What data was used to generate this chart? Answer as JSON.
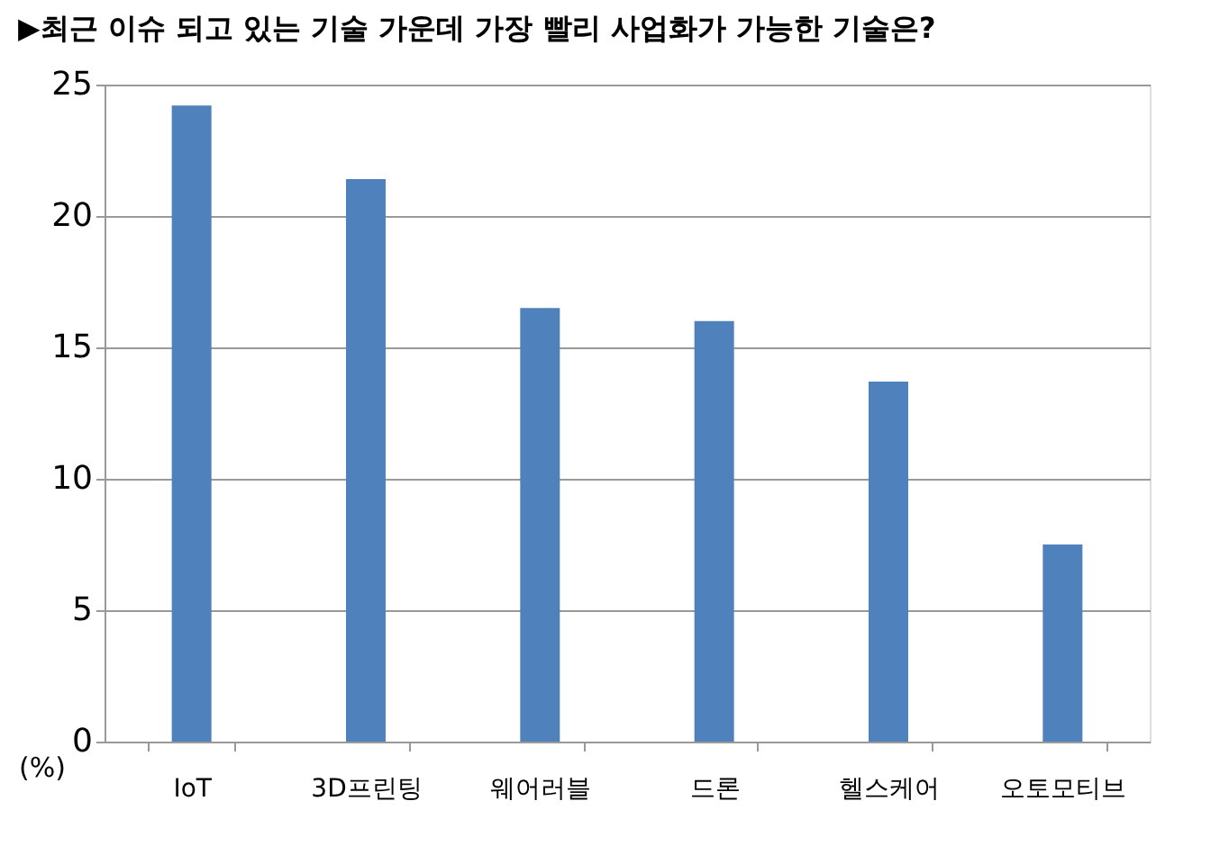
{
  "chart_data": {
    "type": "bar",
    "title": "▶최근 이슈 되고 있는 기술 가운데 가장 빨리 사업화가 가능한 기술은?",
    "ylabel": "(%)",
    "categories": [
      "IoT",
      "3D프린팅",
      "웨어러블",
      "드론",
      "헬스케어",
      "오토모티브"
    ],
    "values": [
      24.2,
      21.4,
      16.5,
      16.0,
      13.7,
      7.5
    ],
    "color": "#4f81bd",
    "ylim": [
      0,
      25
    ],
    "yticks": [
      0,
      5,
      10,
      15,
      20,
      25
    ],
    "grid": "y"
  }
}
